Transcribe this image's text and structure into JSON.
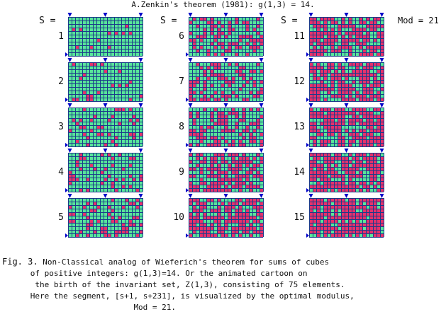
{
  "title": "A.Zenkin's theorem (1981): g(1,3) = 14.",
  "s_label": "S =",
  "mod_label": "Mod = 21",
  "colors": {
    "filled": "#e5316c",
    "empty": "#58e59a",
    "grid": "#1c3b8a",
    "marker": "#0000c8"
  },
  "panels": [
    {
      "s": "1"
    },
    {
      "s": "2"
    },
    {
      "s": "3"
    },
    {
      "s": "4"
    },
    {
      "s": "5"
    },
    {
      "s": "6"
    },
    {
      "s": "7"
    },
    {
      "s": "8"
    },
    {
      "s": "9"
    },
    {
      "s": "10"
    },
    {
      "s": "11"
    },
    {
      "s": "12"
    },
    {
      "s": "13"
    },
    {
      "s": "14"
    },
    {
      "s": "15"
    }
  ],
  "caption": {
    "lead": "Fig. 3.",
    "line1": " Non-Classical analog of Wieferich's theorem for sums of cubes",
    "line2": "of positive integers: g(1,3)=14. Or the animated cartoon on",
    "line3": "the birth of the invariant set, Z(1,3), consisting of 75 elements.",
    "line4": "Here the segment, [s+1, s+231], is visualized by the optimal modulus,",
    "line5": "Mod = 21."
  }
}
